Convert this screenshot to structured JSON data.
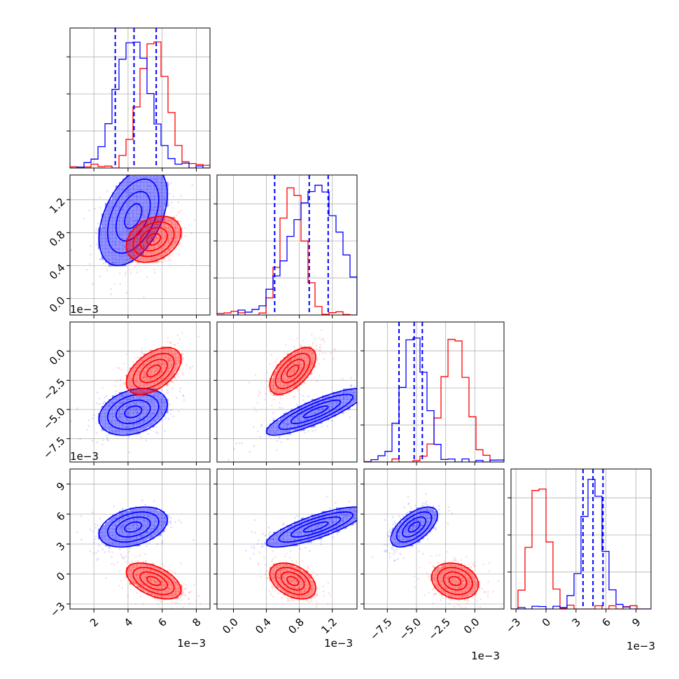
{
  "chart_data": {
    "type": "corner",
    "colors": {
      "series_a": "#0000ff",
      "series_b": "#ff0000",
      "grid": "#b0b0b0",
      "quantile_line": "#0000ff"
    },
    "grid": true,
    "parameters": [
      {
        "range": [
          0.6,
          8.8
        ],
        "ticks": [
          "2",
          "4",
          "6",
          "8"
        ],
        "tick_values": [
          2,
          4,
          6,
          8
        ],
        "offset_label": "1e−3"
      },
      {
        "range": [
          -0.2,
          1.5
        ],
        "ticks": [
          "0.0",
          "0.4",
          "0.8",
          "1.2"
        ],
        "tick_values": [
          0.0,
          0.4,
          0.8,
          1.2
        ],
        "offset_label": "1e−3"
      },
      {
        "range": [
          -9.5,
          2.5
        ],
        "ticks": [
          "−7.5",
          "−5.0",
          "−2.5",
          "0.0"
        ],
        "tick_values": [
          -7.5,
          -5.0,
          -2.5,
          0.0
        ],
        "offset_label": "1e−3"
      },
      {
        "range": [
          -3.5,
          10.5
        ],
        "ticks": [
          "−3",
          "0",
          "3",
          "6",
          "9"
        ],
        "tick_values": [
          -3,
          0,
          3,
          6,
          9
        ],
        "offset_label": "1e−3"
      }
    ],
    "series": [
      {
        "color": "#0000ff",
        "means": [
          4.3,
          1.0,
          -5.2,
          4.7
        ],
        "stds": [
          1.0,
          0.3,
          1.0,
          1.0
        ],
        "correlations": {
          "1-0": 0.45,
          "2-0": 0.3,
          "2-1": 0.85,
          "3-0": 0.35,
          "3-1": 0.8,
          "3-2": 0.6
        }
      },
      {
        "color": "#ff0000",
        "means": [
          5.5,
          0.72,
          -1.7,
          -0.7
        ],
        "stds": [
          0.8,
          0.14,
          1.0,
          0.9
        ],
        "correlations": {
          "1-0": 0.3,
          "2-0": 0.5,
          "2-1": 0.6,
          "3-0": -0.5,
          "3-1": -0.4,
          "3-2": -0.2
        }
      }
    ],
    "quantile_lines": [
      [
        3.25,
        4.35,
        5.65
      ],
      [
        0.5,
        0.92,
        1.15
      ],
      [
        -6.5,
        -5.2,
        -4.5
      ],
      [
        3.7,
        4.7,
        5.7
      ]
    ]
  }
}
